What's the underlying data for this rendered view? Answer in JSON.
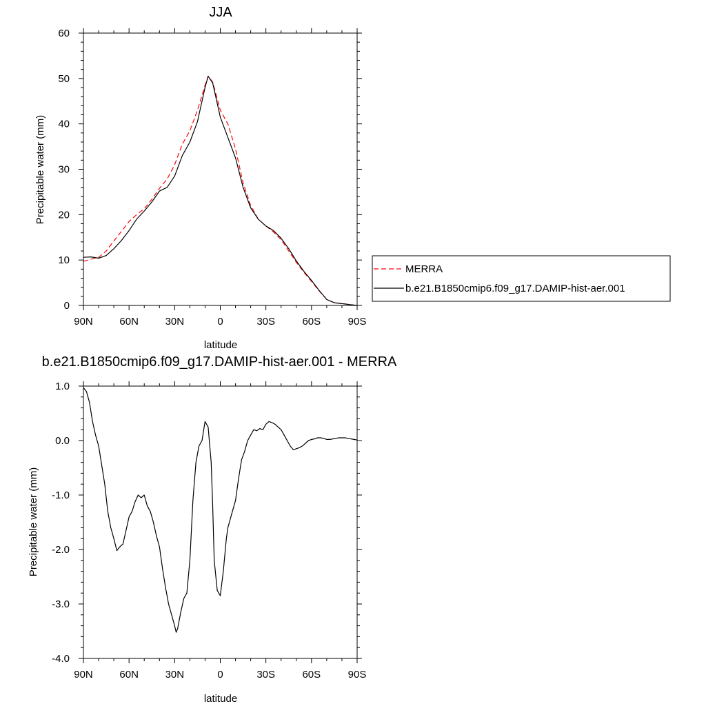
{
  "chart_data": [
    {
      "type": "line",
      "title": "JJA",
      "xlabel": "latitude",
      "ylabel": "Precipitable water (mm)",
      "xlim": [
        90,
        -90
      ],
      "ylim": [
        0,
        60
      ],
      "yticks": [
        {
          "value": 0,
          "label": "0"
        },
        {
          "value": 10,
          "label": "10"
        },
        {
          "value": 20,
          "label": "20"
        },
        {
          "value": 30,
          "label": "30"
        },
        {
          "value": 40,
          "label": "40"
        },
        {
          "value": 50,
          "label": "50"
        },
        {
          "value": 60,
          "label": "60"
        }
      ],
      "xticks": [
        {
          "value": 90,
          "label": "90N"
        },
        {
          "value": 60,
          "label": "60N"
        },
        {
          "value": 30,
          "label": "30N"
        },
        {
          "value": 0,
          "label": "0"
        },
        {
          "value": -30,
          "label": "30S"
        },
        {
          "value": -60,
          "label": "60S"
        },
        {
          "value": -90,
          "label": "90S"
        }
      ],
      "legend_position": "right",
      "series": [
        {
          "name": "MERRA",
          "color": "#ff0000",
          "dash": "dashed",
          "x": [
            90,
            85,
            80,
            75,
            70,
            65,
            60,
            55,
            50,
            45,
            40,
            35,
            30,
            25,
            20,
            15,
            10,
            8,
            5,
            0,
            -5,
            -10,
            -15,
            -20,
            -25,
            -30,
            -35,
            -40,
            -45,
            -50,
            -55,
            -60,
            -65,
            -70,
            -75,
            -80,
            -85,
            -90
          ],
          "y": [
            9.7,
            10.2,
            10.6,
            12.0,
            14.2,
            16.3,
            18.5,
            20.0,
            21.3,
            23.4,
            25.8,
            27.8,
            31.0,
            35.5,
            38.5,
            43.0,
            48.5,
            50.5,
            49.2,
            43.0,
            40.0,
            34.5,
            27.0,
            22.0,
            19.0,
            17.5,
            16.2,
            14.5,
            12.0,
            9.5,
            7.3,
            5.3,
            3.2,
            1.3,
            0.6,
            0.4,
            0.2,
            0.0
          ]
        },
        {
          "name": "b.e21.B1850cmip6.f09_g17.DAMIP-hist-aer.001",
          "color": "#000000",
          "dash": "solid",
          "x": [
            90,
            85,
            80,
            75,
            70,
            65,
            60,
            55,
            50,
            45,
            40,
            35,
            30,
            25,
            20,
            15,
            10,
            8,
            5,
            0,
            -5,
            -10,
            -15,
            -20,
            -25,
            -30,
            -35,
            -40,
            -45,
            -50,
            -55,
            -60,
            -65,
            -70,
            -75,
            -80,
            -85,
            -90
          ],
          "y": [
            10.6,
            10.7,
            10.4,
            11.0,
            12.5,
            14.3,
            16.5,
            19.0,
            20.8,
            22.8,
            25.2,
            26.0,
            28.5,
            33.0,
            36.0,
            40.5,
            48.0,
            50.5,
            49.0,
            41.5,
            37.0,
            32.5,
            26.0,
            21.5,
            19.0,
            17.5,
            16.5,
            14.8,
            12.5,
            9.8,
            7.5,
            5.5,
            3.3,
            1.3,
            0.6,
            0.4,
            0.2,
            0.0
          ]
        }
      ]
    },
    {
      "type": "line",
      "title": "b.e21.B1850cmip6.f09_g17.DAMIP-hist-aer.001 - MERRA",
      "xlabel": "latitude",
      "ylabel": "Precipitable water (mm)",
      "xlim": [
        90,
        -90
      ],
      "ylim": [
        -4.0,
        1.0
      ],
      "yticks": [
        {
          "value": -4,
          "label": "-4.0"
        },
        {
          "value": -3,
          "label": "-3.0"
        },
        {
          "value": -2,
          "label": "-2.0"
        },
        {
          "value": -1,
          "label": "-1.0"
        },
        {
          "value": 0,
          "label": "0.0"
        },
        {
          "value": 1,
          "label": "1.0"
        }
      ],
      "xticks": [
        {
          "value": 90,
          "label": "90N"
        },
        {
          "value": 60,
          "label": "60N"
        },
        {
          "value": 30,
          "label": "30N"
        },
        {
          "value": 0,
          "label": "0"
        },
        {
          "value": -30,
          "label": "30S"
        },
        {
          "value": -60,
          "label": "60S"
        },
        {
          "value": -90,
          "label": "90S"
        }
      ],
      "series": [
        {
          "color": "#000000",
          "dash": "solid",
          "x": [
            90,
            88,
            86,
            84,
            82,
            80,
            78,
            76,
            74,
            72,
            70,
            68,
            66,
            64,
            62,
            60,
            58,
            56,
            54,
            52,
            50,
            48,
            46,
            44,
            42,
            40,
            38,
            36,
            34,
            32,
            30,
            29,
            28,
            26,
            24,
            22,
            20,
            18,
            16,
            14,
            12,
            10,
            8,
            6,
            5,
            4,
            2,
            0,
            -2,
            -4,
            -5,
            -6,
            -8,
            -10,
            -12,
            -14,
            -16,
            -18,
            -20,
            -22,
            -24,
            -26,
            -28,
            -30,
            -32,
            -34,
            -36,
            -38,
            -40,
            -42,
            -44,
            -46,
            -48,
            -50,
            -52,
            -54,
            -56,
            -58,
            -60,
            -62,
            -64,
            -66,
            -68,
            -70,
            -72,
            -74,
            -76,
            -78,
            -80,
            -82,
            -84,
            -86,
            -88,
            -90
          ],
          "y": [
            0.97,
            0.9,
            0.7,
            0.35,
            0.1,
            -0.1,
            -0.45,
            -0.8,
            -1.3,
            -1.6,
            -1.8,
            -2.02,
            -1.95,
            -1.9,
            -1.65,
            -1.4,
            -1.3,
            -1.12,
            -1.0,
            -1.05,
            -1.0,
            -1.2,
            -1.3,
            -1.5,
            -1.75,
            -1.95,
            -2.35,
            -2.7,
            -3.0,
            -3.2,
            -3.4,
            -3.52,
            -3.45,
            -3.15,
            -2.9,
            -2.8,
            -2.2,
            -1.1,
            -0.4,
            -0.1,
            0.0,
            0.35,
            0.25,
            -0.4,
            -1.2,
            -2.2,
            -2.75,
            -2.85,
            -2.4,
            -1.8,
            -1.6,
            -1.5,
            -1.3,
            -1.1,
            -0.7,
            -0.35,
            -0.2,
            0.0,
            0.1,
            0.2,
            0.18,
            0.22,
            0.2,
            0.3,
            0.35,
            0.33,
            0.3,
            0.25,
            0.2,
            0.1,
            0.0,
            -0.1,
            -0.17,
            -0.15,
            -0.13,
            -0.1,
            -0.05,
            0.0,
            0.02,
            0.03,
            0.05,
            0.05,
            0.04,
            0.02,
            0.02,
            0.03,
            0.04,
            0.05,
            0.05,
            0.05,
            0.04,
            0.03,
            0.02,
            0.01
          ]
        }
      ]
    }
  ]
}
